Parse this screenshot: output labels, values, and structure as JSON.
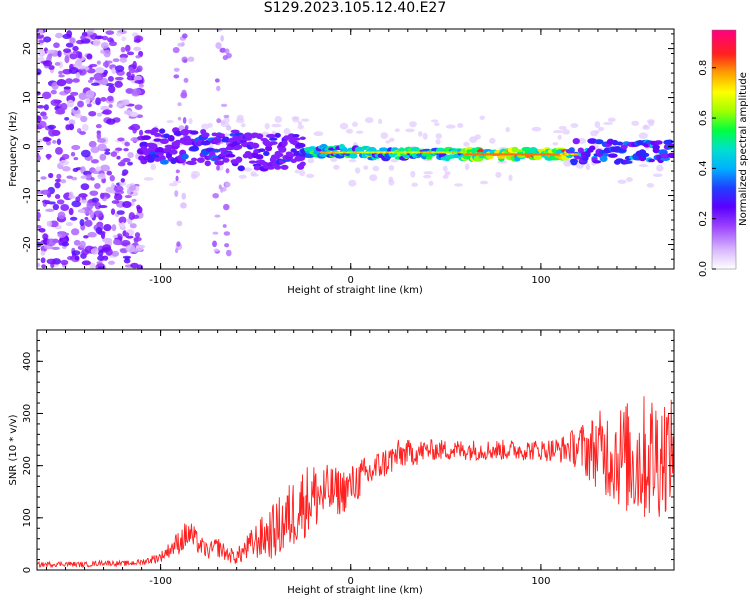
{
  "title": "S129.2023.105.12.40.E27",
  "chart_data": [
    {
      "type": "heatmap",
      "name": "spectrogram",
      "xlabel": "Height of straight line (km)",
      "ylabel": "Frequency (Hz)",
      "xlim": [
        -165,
        170
      ],
      "ylim": [
        -25,
        24
      ],
      "xticks": [
        -100,
        0,
        100
      ],
      "yticks": [
        -20,
        -10,
        0,
        10,
        20
      ],
      "colorbar": {
        "label": "Normalized spectral amplitude",
        "range": [
          0,
          0.95
        ],
        "ticks": [
          0.0,
          0.2,
          0.4,
          0.6,
          0.8
        ],
        "colormap": [
          "#ffffff",
          "#d8b8ff",
          "#9a40ff",
          "#7000ff",
          "#2030ff",
          "#00b0ff",
          "#00e0d0",
          "#00ff40",
          "#a0ff00",
          "#ffff00",
          "#ffa000",
          "#ff2020",
          "#ff0080"
        ]
      },
      "ridge": {
        "description_free": true,
        "segments": [
          {
            "x": [
              -110,
              -60
            ],
            "freq": 0.0,
            "amp": 0.35
          },
          {
            "x": [
              -60,
              -25
            ],
            "freq": -1.0,
            "amp": 0.3
          },
          {
            "x": [
              -25,
              10
            ],
            "freq": -1.0,
            "amp": 0.55
          },
          {
            "x": [
              10,
              60
            ],
            "freq": -1.5,
            "amp": 0.6
          },
          {
            "x": [
              60,
              115
            ],
            "freq": -1.5,
            "amp": 0.8
          },
          {
            "x": [
              115,
              170
            ],
            "freq": -1.0,
            "amp": 0.4
          }
        ]
      }
    },
    {
      "type": "line",
      "name": "snr",
      "xlabel": "Height of straight line (km)",
      "ylabel": "SNR (10 * v/v)",
      "xlim": [
        -165,
        170
      ],
      "ylim": [
        0,
        460
      ],
      "xticks": [
        -100,
        0,
        100
      ],
      "yticks": [
        0,
        100,
        200,
        300,
        400
      ],
      "color": "#ff2020",
      "series": [
        {
          "x": [
            -165,
            -150,
            -140,
            -130,
            -120,
            -110,
            -100,
            -95,
            -90,
            -85,
            -80,
            -75,
            -70,
            -65,
            -60,
            -55,
            -50,
            -45,
            -40,
            -35,
            -30,
            -25,
            -20,
            -15,
            -10,
            -5,
            0,
            5,
            10,
            15,
            20,
            25,
            30,
            35,
            40,
            45,
            50,
            60,
            70,
            80,
            90,
            100,
            110,
            115,
            120,
            125,
            130,
            135,
            140,
            145,
            150,
            155,
            160,
            165,
            170
          ],
          "values": [
            10,
            12,
            10,
            14,
            12,
            15,
            25,
            40,
            55,
            70,
            50,
            35,
            45,
            30,
            25,
            40,
            55,
            65,
            75,
            90,
            110,
            130,
            140,
            145,
            150,
            150,
            160,
            175,
            185,
            200,
            210,
            220,
            225,
            225,
            230,
            230,
            230,
            230,
            230,
            230,
            230,
            230,
            230,
            235,
            235,
            230,
            230,
            225,
            220,
            215,
            210,
            215,
            220,
            225,
            230
          ]
        }
      ],
      "noise_amplitude": [
        5,
        5,
        5,
        5,
        5,
        6,
        10,
        15,
        25,
        30,
        20,
        15,
        20,
        15,
        15,
        25,
        35,
        45,
        55,
        65,
        70,
        70,
        70,
        60,
        50,
        45,
        40,
        40,
        35,
        30,
        30,
        30,
        25,
        25,
        20,
        20,
        20,
        20,
        20,
        20,
        20,
        20,
        25,
        30,
        45,
        60,
        75,
        90,
        100,
        110,
        120,
        125,
        130,
        120,
        90
      ]
    }
  ]
}
